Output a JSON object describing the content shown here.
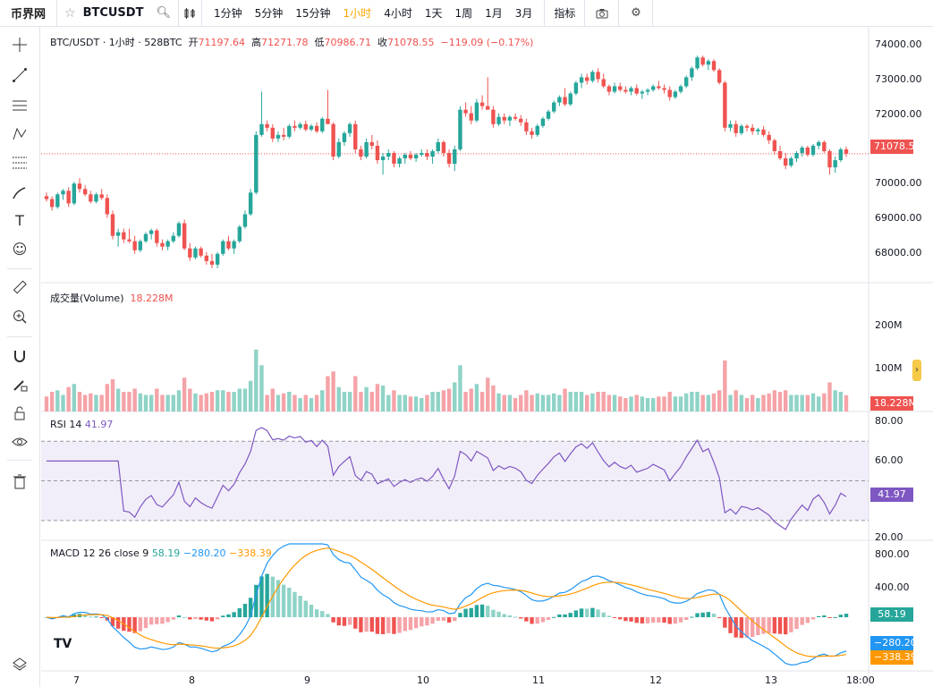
{
  "header": {
    "logo_text": "币界网",
    "symbol": "BTCUSDT",
    "timeframes": [
      "1分钟",
      "5分钟",
      "15分钟",
      "1小时",
      "4小时",
      "1天",
      "1周",
      "1月",
      "3月"
    ],
    "active_timeframe": "1小时",
    "indicators_label": "指标",
    "icons": [
      "star-icon",
      "search-icon",
      "candle-type-icon",
      "camera-icon",
      "settings-icon"
    ]
  },
  "left_tools": [
    "crosshair-icon",
    "trendline-icon",
    "horizontal-lines-icon",
    "pattern-icon",
    "fib-icon",
    "brush-icon",
    "text-icon",
    "emoji-icon",
    "ruler-icon",
    "zoom-in-icon",
    "magnet-icon",
    "lock-drawing-icon",
    "lock-icon",
    "eye-icon",
    "trash-icon"
  ],
  "legend": {
    "title": "BTC/USDT · 1小时 · 528BTC",
    "open_label": "开",
    "open": "71197.64",
    "high_label": "高",
    "high": "71271.78",
    "low_label": "低",
    "low": "70986.71",
    "close_label": "收",
    "close": "71078.55",
    "change": "−119.09 (−0.17%)"
  },
  "price_axis": [
    "74000.00",
    "73000.00",
    "72000.00",
    "71000.00",
    "70000.00",
    "69000.00",
    "68000.00"
  ],
  "last_price_tag": "71078.55",
  "volume": {
    "label": "成交量(Volume)",
    "value": "18.228M",
    "axis": [
      "200M",
      "100M"
    ],
    "tag": "18.228M"
  },
  "rsi": {
    "label": "RSI",
    "length": "14",
    "value": "41.97",
    "axis": [
      "80.00",
      "60.00",
      "20.00"
    ],
    "tag": "41.97"
  },
  "macd": {
    "label": "MACD",
    "params": "12 26 close 9",
    "hist": "58.19",
    "macd": "−280.20",
    "signal": "−338.39",
    "axis": [
      "800.00",
      "400.00"
    ],
    "tags": [
      "58.19",
      "−280.20",
      "−338.39"
    ]
  },
  "time_axis": [
    "7",
    "8",
    "9",
    "10",
    "11",
    "12",
    "13",
    "18:00"
  ],
  "colors": {
    "up": "#26a69a",
    "down": "#ef5350",
    "rsi": "#7e57c2",
    "macd_line": "#2196f3",
    "signal_line": "#ff9800",
    "active_tf": "#f7a600"
  },
  "chart_data": {
    "type": "candlestick",
    "interval": "1h",
    "note_keys": "o,h,l,c per candle in USDT",
    "price_ylim": [
      67500,
      74600
    ],
    "candles": [
      [
        69900,
        70000,
        69750,
        69820
      ],
      [
        69820,
        69900,
        69500,
        69600
      ],
      [
        69600,
        70000,
        69550,
        69950
      ],
      [
        69950,
        70100,
        69800,
        70050
      ],
      [
        70050,
        70150,
        69600,
        69700
      ],
      [
        69700,
        70300,
        69650,
        70250
      ],
      [
        70250,
        70400,
        70000,
        70100
      ],
      [
        70100,
        70200,
        69900,
        69950
      ],
      [
        69950,
        70050,
        69700,
        69750
      ],
      [
        69750,
        70000,
        69700,
        69950
      ],
      [
        69950,
        70100,
        69800,
        69850
      ],
      [
        69850,
        69950,
        69300,
        69400
      ],
      [
        69400,
        69500,
        68700,
        68800
      ],
      [
        68800,
        69000,
        68500,
        68900
      ],
      [
        68900,
        69000,
        68600,
        68700
      ],
      [
        68700,
        69000,
        68600,
        68650
      ],
      [
        68650,
        68800,
        68300,
        68400
      ],
      [
        68400,
        68700,
        68350,
        68650
      ],
      [
        68650,
        68900,
        68600,
        68850
      ],
      [
        68850,
        69000,
        68700,
        68950
      ],
      [
        68950,
        69000,
        68500,
        68600
      ],
      [
        68600,
        68700,
        68400,
        68500
      ],
      [
        68500,
        68700,
        68400,
        68650
      ],
      [
        68650,
        68900,
        68600,
        68800
      ],
      [
        68800,
        69200,
        68750,
        69150
      ],
      [
        69150,
        69250,
        68400,
        68450
      ],
      [
        68450,
        68600,
        68100,
        68200
      ],
      [
        68200,
        68500,
        68150,
        68450
      ],
      [
        68450,
        68500,
        68200,
        68250
      ],
      [
        68250,
        68350,
        68000,
        68100
      ],
      [
        68100,
        68300,
        67900,
        68000
      ],
      [
        68000,
        68350,
        67900,
        68300
      ],
      [
        68300,
        68700,
        68250,
        68650
      ],
      [
        68650,
        68800,
        68400,
        68450
      ],
      [
        68450,
        68700,
        68300,
        68650
      ],
      [
        68650,
        69100,
        68600,
        69050
      ],
      [
        69050,
        69500,
        69000,
        69400
      ],
      [
        69400,
        70100,
        69350,
        70000
      ],
      [
        70000,
        71700,
        69950,
        71600
      ],
      [
        71600,
        72800,
        71550,
        71900
      ],
      [
        71900,
        72000,
        71700,
        71800
      ],
      [
        71800,
        71900,
        71400,
        71500
      ],
      [
        71500,
        71700,
        71400,
        71600
      ],
      [
        71600,
        71800,
        71450,
        71550
      ],
      [
        71550,
        71900,
        71500,
        71850
      ],
      [
        71850,
        72000,
        71700,
        71800
      ],
      [
        71800,
        71950,
        71750,
        71900
      ],
      [
        71900,
        72000,
        71700,
        71750
      ],
      [
        71750,
        71900,
        71700,
        71850
      ],
      [
        71850,
        71950,
        71650,
        71700
      ],
      [
        71700,
        72100,
        71650,
        72050
      ],
      [
        72050,
        72850,
        71950,
        71900
      ],
      [
        71900,
        71950,
        70900,
        71000
      ],
      [
        71000,
        71500,
        70950,
        71400
      ],
      [
        71400,
        71700,
        71300,
        71650
      ],
      [
        71650,
        71950,
        71550,
        71900
      ],
      [
        71900,
        72000,
        71100,
        71200
      ],
      [
        71200,
        71300,
        70900,
        71000
      ],
      [
        71000,
        71500,
        70950,
        71400
      ],
      [
        71400,
        71600,
        71200,
        71300
      ],
      [
        71300,
        71450,
        70800,
        70900
      ],
      [
        70900,
        71100,
        70500,
        71000
      ],
      [
        71000,
        71200,
        70900,
        71100
      ],
      [
        71100,
        71150,
        70700,
        70800
      ],
      [
        70800,
        71000,
        70700,
        70950
      ],
      [
        70950,
        71100,
        70800,
        71050
      ],
      [
        71050,
        71150,
        70900,
        70950
      ],
      [
        70950,
        71100,
        70850,
        71050
      ],
      [
        71050,
        71200,
        71000,
        71100
      ],
      [
        71100,
        71200,
        70900,
        71000
      ],
      [
        71000,
        71200,
        70800,
        71150
      ],
      [
        71150,
        71500,
        71100,
        71400
      ],
      [
        71400,
        71450,
        71000,
        71100
      ],
      [
        71100,
        71200,
        70700,
        70800
      ],
      [
        70800,
        71300,
        70600,
        71200
      ],
      [
        71200,
        72400,
        71150,
        72300
      ],
      [
        72300,
        72500,
        72100,
        72200
      ],
      [
        72200,
        72400,
        71900,
        72000
      ],
      [
        72000,
        72600,
        71950,
        72500
      ],
      [
        72500,
        72700,
        72300,
        72400
      ],
      [
        72400,
        73200,
        72350,
        72300
      ],
      [
        72300,
        72400,
        71800,
        71900
      ],
      [
        71900,
        72200,
        71850,
        72100
      ],
      [
        72100,
        72200,
        71900,
        72000
      ],
      [
        72000,
        72150,
        71850,
        72100
      ],
      [
        72100,
        72200,
        72000,
        72050
      ],
      [
        72050,
        72150,
        71850,
        71950
      ],
      [
        71950,
        72050,
        71600,
        71700
      ],
      [
        71700,
        71800,
        71500,
        71600
      ],
      [
        71600,
        71900,
        71550,
        71850
      ],
      [
        71850,
        72100,
        71800,
        72050
      ],
      [
        72050,
        72300,
        72000,
        72250
      ],
      [
        72250,
        72550,
        72200,
        72500
      ],
      [
        72500,
        72700,
        72400,
        72650
      ],
      [
        72650,
        72900,
        72400,
        72450
      ],
      [
        72450,
        72800,
        72400,
        72750
      ],
      [
        72750,
        73100,
        72700,
        73050
      ],
      [
        73050,
        73300,
        72900,
        73200
      ],
      [
        73200,
        73300,
        73000,
        73100
      ],
      [
        73100,
        73400,
        73050,
        73350
      ],
      [
        73350,
        73450,
        73050,
        73150
      ],
      [
        73150,
        73300,
        72900,
        72950
      ],
      [
        72950,
        73000,
        72700,
        72800
      ],
      [
        72800,
        73050,
        72750,
        72950
      ],
      [
        72950,
        73050,
        72800,
        72850
      ],
      [
        72850,
        72950,
        72750,
        72800
      ],
      [
        72800,
        72950,
        72700,
        72900
      ],
      [
        72900,
        73000,
        72700,
        72750
      ],
      [
        72750,
        72850,
        72600,
        72800
      ],
      [
        72800,
        72900,
        72700,
        72850
      ],
      [
        72850,
        73000,
        72800,
        72950
      ],
      [
        72950,
        73100,
        72850,
        72900
      ],
      [
        72900,
        73000,
        72750,
        72850
      ],
      [
        72850,
        72950,
        72550,
        72650
      ],
      [
        72650,
        72850,
        72600,
        72800
      ],
      [
        72800,
        73000,
        72750,
        72950
      ],
      [
        72950,
        73250,
        72900,
        73200
      ],
      [
        73200,
        73500,
        73100,
        73450
      ],
      [
        73450,
        73800,
        73400,
        73750
      ],
      [
        73750,
        73800,
        73500,
        73550
      ],
      [
        73550,
        73700,
        73400,
        73650
      ],
      [
        73650,
        73700,
        73350,
        73400
      ],
      [
        73400,
        73450,
        73000,
        73050
      ],
      [
        73050,
        73100,
        71700,
        71800
      ],
      [
        71800,
        72000,
        71700,
        71900
      ],
      [
        71900,
        72000,
        71550,
        71650
      ],
      [
        71650,
        71900,
        71600,
        71850
      ],
      [
        71850,
        71900,
        71700,
        71800
      ],
      [
        71800,
        71900,
        71600,
        71700
      ],
      [
        71700,
        71800,
        71600,
        71750
      ],
      [
        71750,
        71850,
        71550,
        71600
      ],
      [
        71600,
        71700,
        71350,
        71450
      ],
      [
        71450,
        71500,
        71050,
        71150
      ],
      [
        71150,
        71300,
        70900,
        70950
      ],
      [
        70950,
        71100,
        70650,
        70750
      ],
      [
        70750,
        71000,
        70700,
        70950
      ],
      [
        70950,
        71150,
        70850,
        71100
      ],
      [
        71100,
        71300,
        71000,
        71250
      ],
      [
        71250,
        71300,
        71000,
        71050
      ],
      [
        71050,
        71350,
        71000,
        71300
      ],
      [
        71300,
        71450,
        71200,
        71400
      ],
      [
        71400,
        71450,
        71100,
        71150
      ],
      [
        71150,
        71200,
        70500,
        70700
      ],
      [
        70700,
        71000,
        70550,
        70900
      ],
      [
        70900,
        71250,
        70850,
        71200
      ],
      [
        71200,
        71280,
        70990,
        71080
      ]
    ]
  }
}
